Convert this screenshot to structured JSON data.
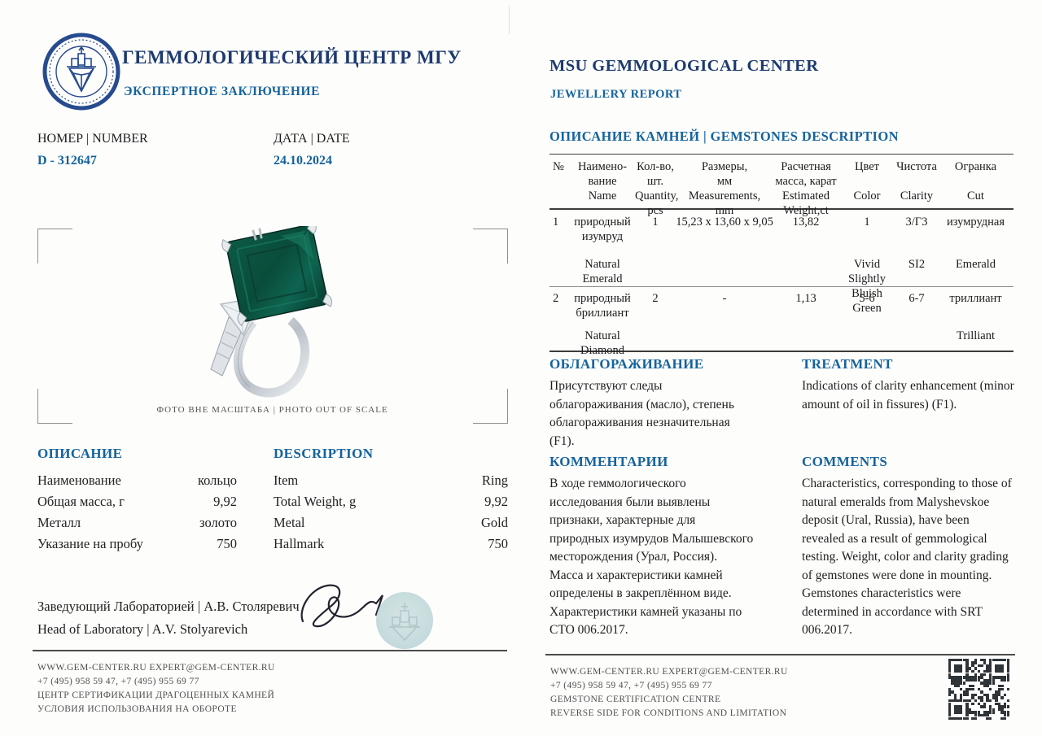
{
  "header": {
    "org_ru": "ГЕММОЛОГИЧЕСКИЙ ЦЕНТР МГУ",
    "doc_ru": "ЭКСПЕРТНОЕ ЗАКЛЮЧЕНИЕ",
    "org_en": "MSU GEMMOLOGICAL CENTER",
    "doc_en": "JEWELLERY REPORT"
  },
  "meta": {
    "number_label": "НОМЕР | NUMBER",
    "number_value": "D - 312647",
    "date_label": "ДАТА | DATE",
    "date_value": "24.10.2024"
  },
  "photo": {
    "caption": "ФОТО ВНЕ МАСШТАБА | PHOTO OUT OF SCALE"
  },
  "description": {
    "title_ru": "ОПИСАНИЕ",
    "title_en": "DESCRIPTION",
    "rows": [
      {
        "label_ru": "Наименование",
        "value_ru": "кольцо",
        "label_en": "Item",
        "value_en": "Ring"
      },
      {
        "label_ru": "Общая масса, г",
        "value_ru": "9,92",
        "label_en": "Total Weight, g",
        "value_en": "9,92"
      },
      {
        "label_ru": "Металл",
        "value_ru": "золото",
        "label_en": "Metal",
        "value_en": "Gold"
      },
      {
        "label_ru": "Указание на пробу",
        "value_ru": "750",
        "label_en": "Hallmark",
        "value_en": "750"
      }
    ]
  },
  "gemstones": {
    "title": "ОПИСАНИЕ КАМНЕЙ | GEMSTONES DESCRIPTION",
    "columns": [
      {
        "ru": "№",
        "en": ""
      },
      {
        "ru": "Наимено-\nвание",
        "en": "Name"
      },
      {
        "ru": "Кол-во,\nшт.",
        "en": "Quantity,\npcs"
      },
      {
        "ru": "Размеры,\nмм",
        "en": "Measurements,\nmm"
      },
      {
        "ru": "Расчетная\nмасса, карат",
        "en": "Estimated\nWeight,ct"
      },
      {
        "ru": "Цвет",
        "en": "Color"
      },
      {
        "ru": "Чистота",
        "en": "Clarity"
      },
      {
        "ru": "Огранка",
        "en": "Cut"
      }
    ],
    "rows": [
      {
        "num": "1",
        "name_ru": "природный\nизумруд",
        "name_en": "Natural\nEmerald",
        "qty": "1",
        "size": "15,23 x 13,60 x 9,05",
        "weight": "13,82",
        "color_ru": "1",
        "color_en": "Vivid Slightly\nBluish Green",
        "clarity_ru": "3/Г3",
        "clarity_en": "SI2",
        "cut_ru": "изумрудная",
        "cut_en": "Emerald"
      },
      {
        "num": "2",
        "name_ru": "природный\nбриллиант",
        "name_en": "Natural\nDiamond",
        "qty": "2",
        "size": "-",
        "weight": "1,13",
        "color_ru": "5-6",
        "color_en": "",
        "clarity_ru": "6-7",
        "clarity_en": "",
        "cut_ru": "триллиант",
        "cut_en": "Trilliant"
      }
    ]
  },
  "treatment": {
    "title_ru": "ОБЛАГОРАЖИВАНИЕ",
    "body_ru": "Присутствуют следы облагораживания (масло), степень облагораживания незначительная (F1).",
    "title_en": "TREATMENT",
    "body_en": "Indications of clarity enhancement (minor amount of oil in fissures) (F1)."
  },
  "comments": {
    "title_ru": "КОММЕНТАРИИ",
    "body_ru": "В ходе геммологического исследования были выявлены признаки, характерные для природных изумрудов Малышевского месторождения (Урал, Россия).\nМасса и характеристики камней определены в закреплённом виде.\nХарактеристики камней указаны по СТО 006.2017.",
    "title_en": "COMMENTS",
    "body_en": "Characteristics, corresponding to those of natural emeralds from Malyshevskoe deposit (Ural, Russia), have been revealed as a result of gemmological testing. Weight, color and clarity grading of gemstones were done in mounting. Gemstones characteristics were determined in accordance with SRT 006.2017."
  },
  "signature": {
    "line_ru": "Заведующий Лабораторией  | А.В. Столяревич",
    "line_en": "Head of Laboratory  | A.V. Stolyarevich"
  },
  "footer_left": {
    "line1": "WWW.GEM-CENTER.RU EXPERT@GEM-CENTER.RU",
    "line2": "+7 (495) 958 59 47, +7 (495) 955 69 77",
    "line3": "ЦЕНТР СЕРТИФИКАЦИИ ДРАГОЦЕННЫХ КАМНЕЙ",
    "line4": "УСЛОВИЯ ИСПОЛЬЗОВАНИЯ НА ОБОРОТЕ"
  },
  "footer_right": {
    "line1": "WWW.GEM-CENTER.RU EXPERT@GEM-CENTER.RU",
    "line2": "+7 (495) 958 59 47, +7 (495) 955 69 77",
    "line3": "GEMSTONE CERTIFICATION CENTRE",
    "line4": "REVERSE SIDE FOR CONDITIONS AND LIMITATION"
  },
  "colors": {
    "heading_blue": "#15639d",
    "title_navy": "#1d3a6e",
    "body_text": "#222222",
    "emerald_green": "#0b5a45",
    "stamp_teal": "#bed7d9"
  }
}
